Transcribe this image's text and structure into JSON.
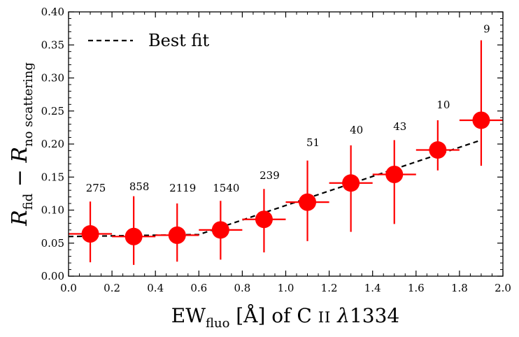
{
  "chart_data": {
    "type": "scatter",
    "xlabel": {
      "main": "EW",
      "sub": "fluo",
      "rest": " [Å] of C ",
      "ion": "II",
      "lambda": "λ",
      "wave": "1334"
    },
    "ylabel": {
      "r1": "R",
      "sub1": "fid",
      "minus": " − ",
      "r2": "R",
      "sub2": "no scattering"
    },
    "xlim": [
      0.0,
      2.0
    ],
    "ylim": [
      0.0,
      0.4
    ],
    "xticks": [
      "0.0",
      "0.2",
      "0.4",
      "0.6",
      "0.8",
      "1.0",
      "1.2",
      "1.4",
      "1.6",
      "1.8",
      "2.0"
    ],
    "yticks": [
      "0.00",
      "0.05",
      "0.10",
      "0.15",
      "0.20",
      "0.25",
      "0.30",
      "0.35",
      "0.40"
    ],
    "series": [
      {
        "name": "Data",
        "color": "#ff0000",
        "x": [
          0.1,
          0.3,
          0.5,
          0.7,
          0.9,
          1.1,
          1.3,
          1.5,
          1.7,
          1.9
        ],
        "y": [
          0.064,
          0.06,
          0.062,
          0.07,
          0.086,
          0.112,
          0.141,
          0.154,
          0.191,
          0.236
        ],
        "y_err_low": [
          0.021,
          0.017,
          0.022,
          0.025,
          0.036,
          0.053,
          0.067,
          0.079,
          0.16,
          0.167
        ],
        "y_err_high": [
          0.113,
          0.121,
          0.11,
          0.114,
          0.132,
          0.175,
          0.198,
          0.206,
          0.236,
          0.357
        ],
        "x_halfwidth": 0.1,
        "counts": [
          "275",
          "858",
          "2119",
          "1540",
          "239",
          "51",
          "40",
          "43",
          "10",
          "9"
        ],
        "count_y": [
          0.128,
          0.13,
          0.128,
          0.128,
          0.147,
          0.197,
          0.216,
          0.221,
          0.254,
          0.369
        ]
      },
      {
        "name": "Best fit",
        "style": "dashed",
        "color": "#000000",
        "x": [
          0.0,
          0.6,
          1.9
        ],
        "y": [
          0.06,
          0.063,
          0.206
        ]
      }
    ],
    "legend": {
      "label": "Best fit",
      "position": "top-left"
    }
  }
}
